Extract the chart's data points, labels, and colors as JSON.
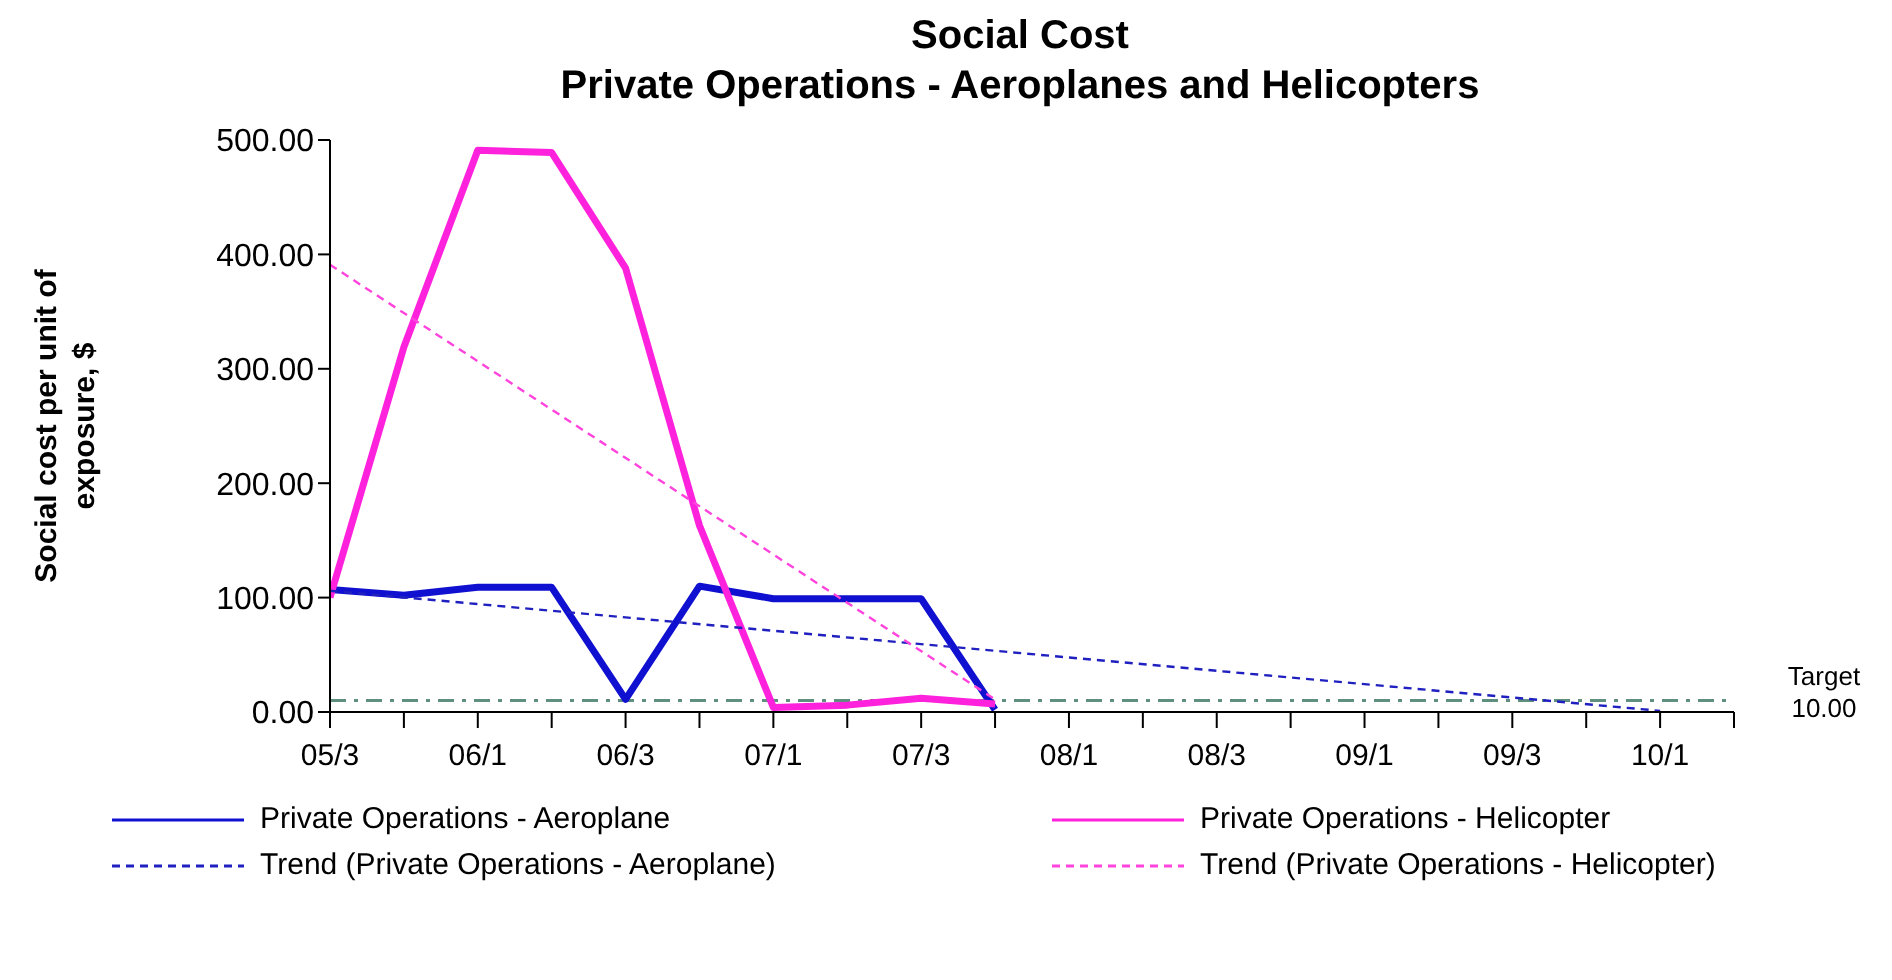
{
  "chart_data": {
    "type": "line",
    "title": "Social Cost\nPrivate Operations - Aeroplanes and Helicopters",
    "ylabel": "Social cost per unit of\nexposure, $",
    "categories": [
      "05/3",
      null,
      "06/1",
      null,
      "06/3",
      null,
      "07/1",
      null,
      "07/3",
      null,
      "08/1",
      null,
      "08/3",
      null,
      "09/1",
      null,
      "09/3",
      null,
      "10/1",
      null
    ],
    "series": [
      {
        "name": "Private Operations - Aeroplane",
        "color": "#1010d0",
        "values": [
          107,
          102,
          109,
          109,
          11,
          110,
          99,
          99,
          99,
          2,
          null,
          null,
          null,
          null,
          null,
          null,
          null,
          null,
          null,
          null
        ]
      },
      {
        "name": "Private Operations - Helicopter",
        "color": "#ff22dd",
        "values": [
          100,
          319,
          491,
          489,
          388,
          163,
          4,
          6,
          12,
          7,
          null,
          null,
          null,
          null,
          null,
          null,
          null,
          null,
          null,
          null
        ]
      },
      {
        "name": "Trend (Private Operations - Aeroplane)",
        "color": "#2020c0",
        "line_style": "dashed",
        "values": [
          106,
          null,
          null,
          null,
          null,
          null,
          null,
          null,
          null,
          null,
          null,
          null,
          null,
          null,
          null,
          null,
          null,
          null,
          1,
          null
        ]
      },
      {
        "name": "Trend (Private Operations - Helicopter)",
        "color": "#ff44dd",
        "line_style": "dashed",
        "values": [
          391,
          null,
          null,
          null,
          null,
          null,
          null,
          null,
          null,
          11,
          null,
          null,
          null,
          null,
          null,
          null,
          null,
          null,
          null,
          null
        ]
      }
    ],
    "ylim": [
      0,
      500
    ],
    "yticks": [
      {
        "value": 0,
        "label": "0.00"
      },
      {
        "value": 100,
        "label": "100.00"
      },
      {
        "value": 200,
        "label": "200.00"
      },
      {
        "value": 300,
        "label": "300.00"
      },
      {
        "value": 400,
        "label": "400.00"
      },
      {
        "value": 500,
        "label": "500.00"
      }
    ],
    "ref_lines": [
      {
        "axis": "y",
        "value": 10,
        "label": "Target\n10.00",
        "color": "#5f8f7f",
        "line_style": "dashdot"
      }
    ],
    "grid": false,
    "legend": "bottom",
    "marker": "none",
    "line_style": "solid"
  }
}
